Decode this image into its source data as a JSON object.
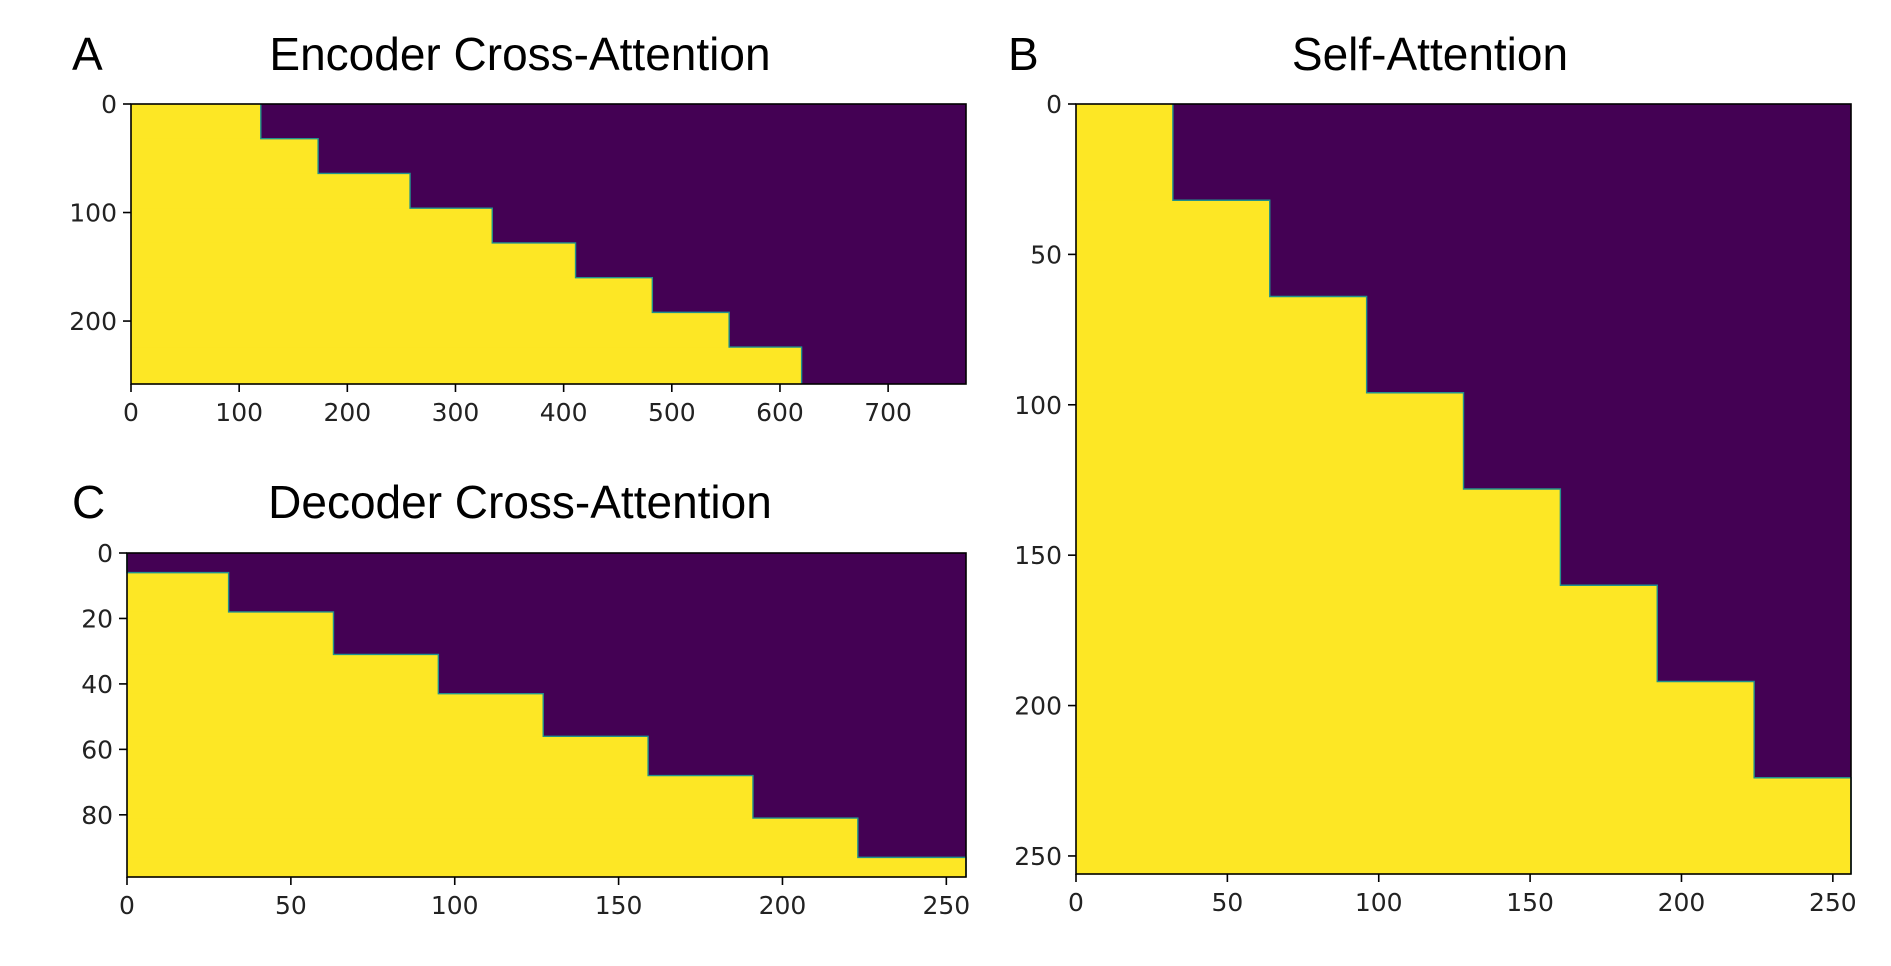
{
  "colors": {
    "mask_on": "#fde725",
    "mask_off": "#440154",
    "step_edge": "#21918c"
  },
  "chart_data": [
    {
      "panel_label": "A",
      "type": "heatmap",
      "title": "Encoder Cross-Attention",
      "x_range": [
        0,
        772
      ],
      "y_range": [
        0,
        258
      ],
      "x_ticks": [
        0,
        100,
        200,
        300,
        400,
        500,
        600,
        700
      ],
      "y_ticks": [
        0,
        100,
        200
      ],
      "description": "binary mask; cells left of the boundary are 1 (yellow), right are 0 (purple)",
      "steps": [
        {
          "y_start": 0,
          "y_end": 32,
          "x_boundary": 120
        },
        {
          "y_start": 32,
          "y_end": 64,
          "x_boundary": 173
        },
        {
          "y_start": 64,
          "y_end": 96,
          "x_boundary": 258
        },
        {
          "y_start": 96,
          "y_end": 128,
          "x_boundary": 334
        },
        {
          "y_start": 128,
          "y_end": 160,
          "x_boundary": 411
        },
        {
          "y_start": 160,
          "y_end": 192,
          "x_boundary": 482
        },
        {
          "y_start": 192,
          "y_end": 224,
          "x_boundary": 553
        },
        {
          "y_start": 224,
          "y_end": 258,
          "x_boundary": 620
        }
      ]
    },
    {
      "panel_label": "B",
      "type": "heatmap",
      "title": "Self-Attention",
      "x_range": [
        0,
        256
      ],
      "y_range": [
        0,
        256
      ],
      "x_ticks": [
        0,
        50,
        100,
        150,
        200,
        250
      ],
      "y_ticks": [
        0,
        50,
        100,
        150,
        200,
        250
      ],
      "steps": [
        {
          "y_start": 0,
          "y_end": 32,
          "x_boundary": 32
        },
        {
          "y_start": 32,
          "y_end": 64,
          "x_boundary": 64
        },
        {
          "y_start": 64,
          "y_end": 96,
          "x_boundary": 96
        },
        {
          "y_start": 96,
          "y_end": 128,
          "x_boundary": 128
        },
        {
          "y_start": 128,
          "y_end": 160,
          "x_boundary": 160
        },
        {
          "y_start": 160,
          "y_end": 192,
          "x_boundary": 192
        },
        {
          "y_start": 192,
          "y_end": 224,
          "x_boundary": 224
        },
        {
          "y_start": 224,
          "y_end": 256,
          "x_boundary": 256
        }
      ]
    },
    {
      "panel_label": "C",
      "type": "heatmap",
      "title": "Decoder Cross-Attention",
      "x_range": [
        0,
        256
      ],
      "y_range": [
        0,
        99
      ],
      "x_ticks": [
        0,
        50,
        100,
        150,
        200,
        250
      ],
      "y_ticks": [
        0,
        20,
        40,
        60,
        80
      ],
      "steps": [
        {
          "y_start": 0,
          "y_end": 6,
          "x_boundary": 0
        },
        {
          "y_start": 6,
          "y_end": 18,
          "x_boundary": 31
        },
        {
          "y_start": 18,
          "y_end": 31,
          "x_boundary": 63
        },
        {
          "y_start": 31,
          "y_end": 43,
          "x_boundary": 95
        },
        {
          "y_start": 43,
          "y_end": 56,
          "x_boundary": 127
        },
        {
          "y_start": 56,
          "y_end": 68,
          "x_boundary": 159
        },
        {
          "y_start": 68,
          "y_end": 81,
          "x_boundary": 191
        },
        {
          "y_start": 81,
          "y_end": 93,
          "x_boundary": 223
        },
        {
          "y_start": 93,
          "y_end": 99,
          "x_boundary": 256
        }
      ]
    }
  ]
}
